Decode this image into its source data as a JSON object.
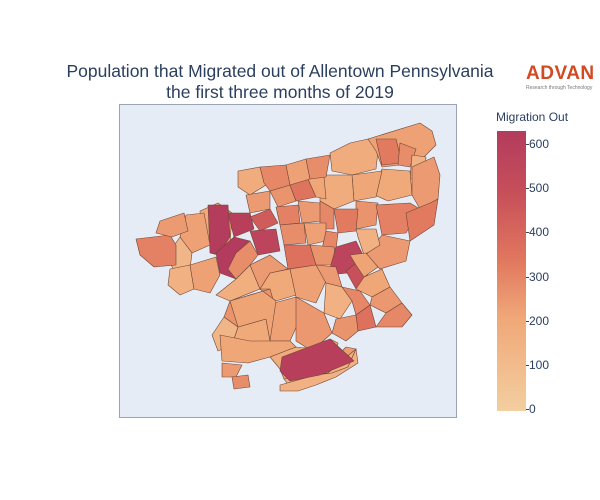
{
  "title": {
    "line1": "Population that Migrated out of Allentown Pennsylvania",
    "line2": "the first three months of 2019"
  },
  "logo": {
    "word": "ADVAN",
    "tagline": "Research through Technology",
    "color": "#d24a24"
  },
  "colorbar": {
    "title": "Migration Out",
    "ticks": [
      "600",
      "500",
      "400",
      "300",
      "200",
      "100",
      "0"
    ],
    "tick_values": [
      600,
      500,
      400,
      300,
      200,
      100,
      0
    ],
    "min": 0,
    "max": 630,
    "colors": [
      "#f3cea0",
      "#f0a878",
      "#e0755e",
      "#c74f5a",
      "#b33b5d"
    ]
  },
  "map": {
    "background": "#e5ecf6",
    "border_color": "#6f4636"
  }
}
